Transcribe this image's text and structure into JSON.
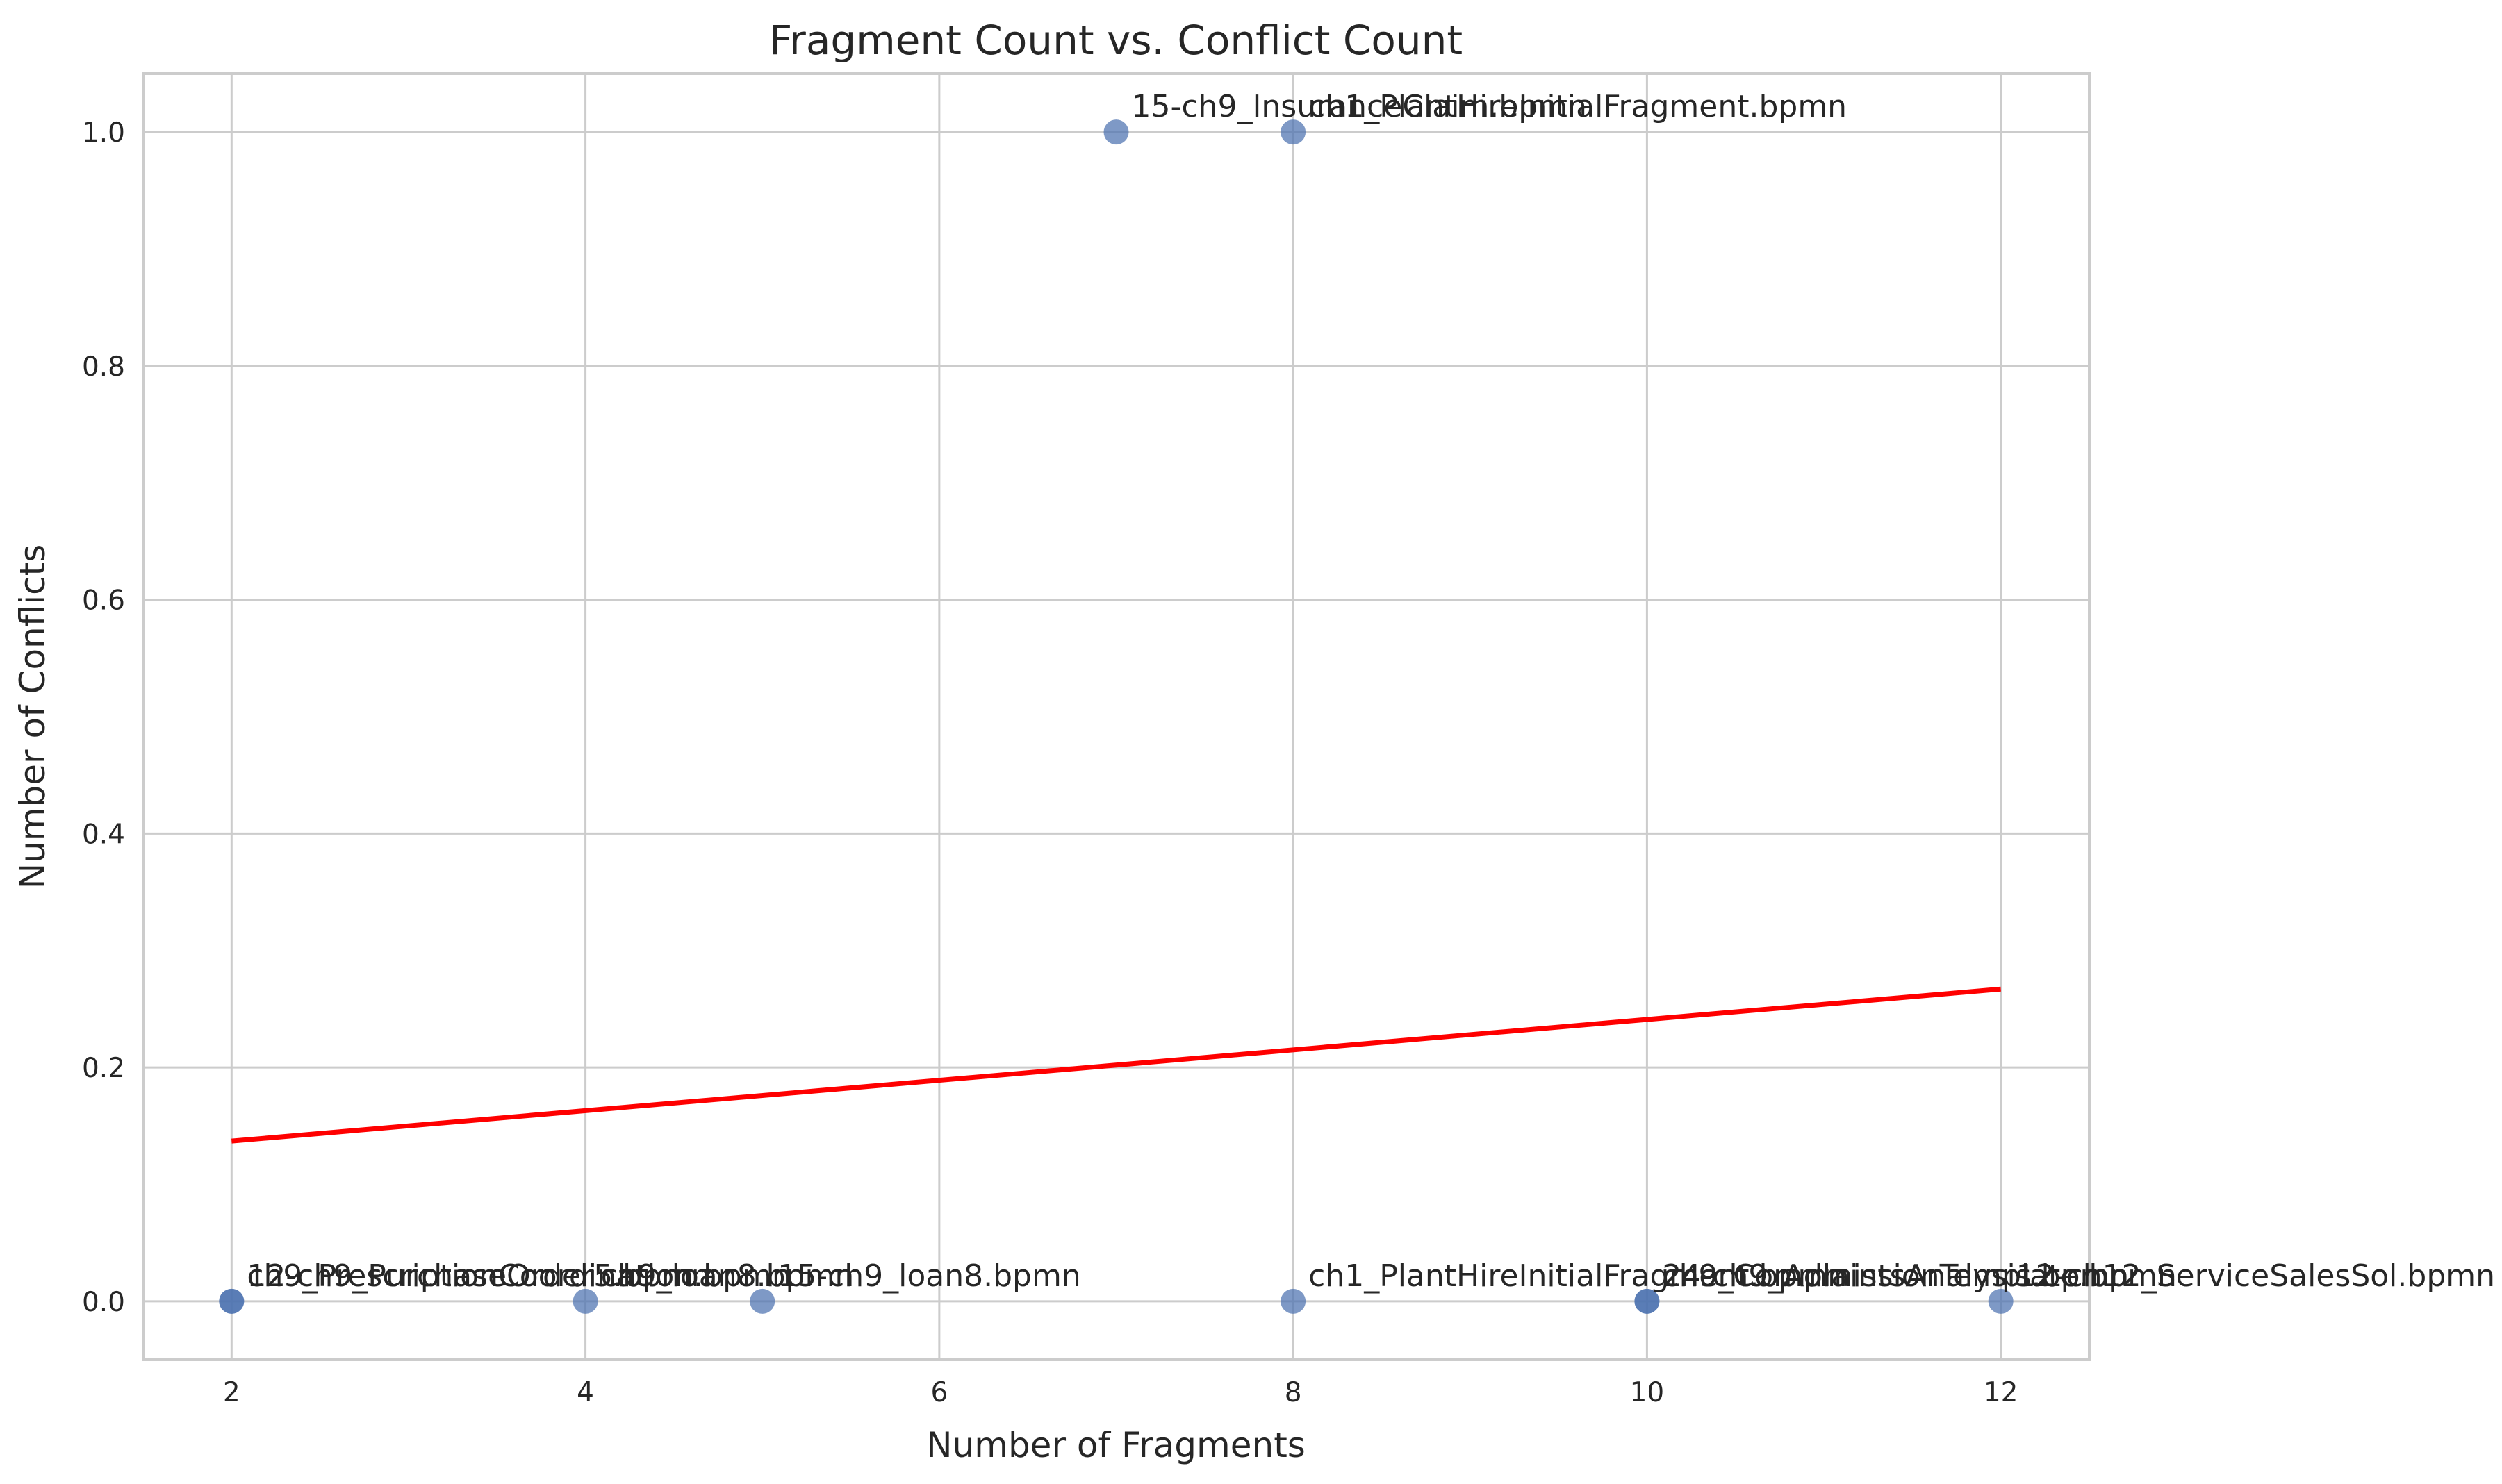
{
  "chart_data": {
    "type": "scatter",
    "title": "Fragment Count vs. Conflict Count",
    "xlabel": "Number of Fragments",
    "ylabel": "Number of Conflicts",
    "xlim": [
      1.5,
      12.5
    ],
    "ylim": [
      -0.05,
      1.05
    ],
    "xticks": [
      2,
      4,
      6,
      8,
      10,
      12
    ],
    "yticks": [
      0.0,
      0.2,
      0.4,
      0.6,
      0.8,
      1.0
    ],
    "grid": true,
    "point_color": "#4c72b0",
    "trend_color": "#ff0000",
    "points": [
      {
        "x": 2,
        "y": 0,
        "label": "12-ch9_PurchaseOrder5.bpmn"
      },
      {
        "x": 2,
        "y": 0,
        "label": "ch9_PrescriptionCoordination.bpmn"
      },
      {
        "x": 4,
        "y": 0,
        "label": "ch9_loan8.bpmn"
      },
      {
        "x": 5,
        "y": 0,
        "label": "15-ch9_loan8.bpmn"
      },
      {
        "x": 7,
        "y": 1,
        "label": "15-ch9_InsuranceClaim.bpmn"
      },
      {
        "x": 8,
        "y": 1,
        "label": "ch1_PlantHireInitialFragment.bpmn"
      },
      {
        "x": 8,
        "y": 0,
        "label": "ch1_PlantHireInitialFragment.bpmn"
      },
      {
        "x": 10,
        "y": 0,
        "label": "24-ch9_AdmissionTemplate.bpmn"
      },
      {
        "x": 10,
        "y": 0,
        "label": "ch9_ComplaintsAnalysis.bpmn"
      },
      {
        "x": 12,
        "y": 0,
        "label": "12-ch12_ServiceSalesSol.bpmn"
      }
    ],
    "trend_line": {
      "x": [
        2,
        12
      ],
      "y": [
        0.137,
        0.267
      ]
    }
  }
}
